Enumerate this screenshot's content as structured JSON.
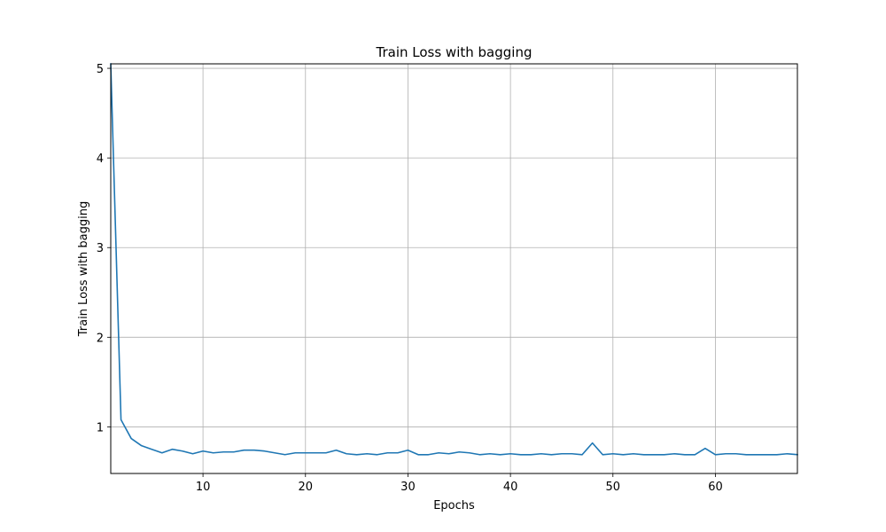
{
  "chart_data": {
    "type": "line",
    "title": "Train Loss with bagging",
    "xlabel": "Epochs",
    "ylabel": "Train Loss with bagging",
    "xlim": [
      1,
      68
    ],
    "ylim": [
      0.48,
      5.05
    ],
    "xticks": [
      10,
      20,
      30,
      40,
      50,
      60
    ],
    "yticks": [
      1,
      2,
      3,
      4,
      5
    ],
    "grid": true,
    "colors": {
      "line": "#1f77b4",
      "grid": "#b0b0b0",
      "axes": "#000000"
    },
    "series": [
      {
        "x": [
          1,
          2,
          3,
          4,
          5,
          6,
          7,
          8,
          9,
          10,
          11,
          12,
          13,
          14,
          15,
          16,
          17,
          18,
          19,
          20,
          21,
          22,
          23,
          24,
          25,
          26,
          27,
          28,
          29,
          30,
          31,
          32,
          33,
          34,
          35,
          36,
          37,
          38,
          39,
          40,
          41,
          42,
          43,
          44,
          45,
          46,
          47,
          48,
          49,
          50,
          51,
          52,
          53,
          54,
          55,
          56,
          57,
          58,
          59,
          60,
          61,
          62,
          63,
          64,
          65,
          66,
          67,
          68
        ],
        "y": [
          5.05,
          1.08,
          0.87,
          0.79,
          0.75,
          0.71,
          0.75,
          0.73,
          0.7,
          0.73,
          0.71,
          0.72,
          0.72,
          0.74,
          0.74,
          0.73,
          0.71,
          0.69,
          0.71,
          0.71,
          0.71,
          0.71,
          0.74,
          0.7,
          0.69,
          0.7,
          0.69,
          0.71,
          0.71,
          0.74,
          0.69,
          0.69,
          0.71,
          0.7,
          0.72,
          0.71,
          0.69,
          0.7,
          0.69,
          0.7,
          0.69,
          0.69,
          0.7,
          0.69,
          0.7,
          0.7,
          0.69,
          0.82,
          0.69,
          0.7,
          0.69,
          0.7,
          0.69,
          0.69,
          0.69,
          0.7,
          0.69,
          0.69,
          0.76,
          0.69,
          0.7,
          0.7,
          0.69,
          0.69,
          0.69,
          0.69,
          0.7,
          0.69
        ]
      }
    ]
  }
}
